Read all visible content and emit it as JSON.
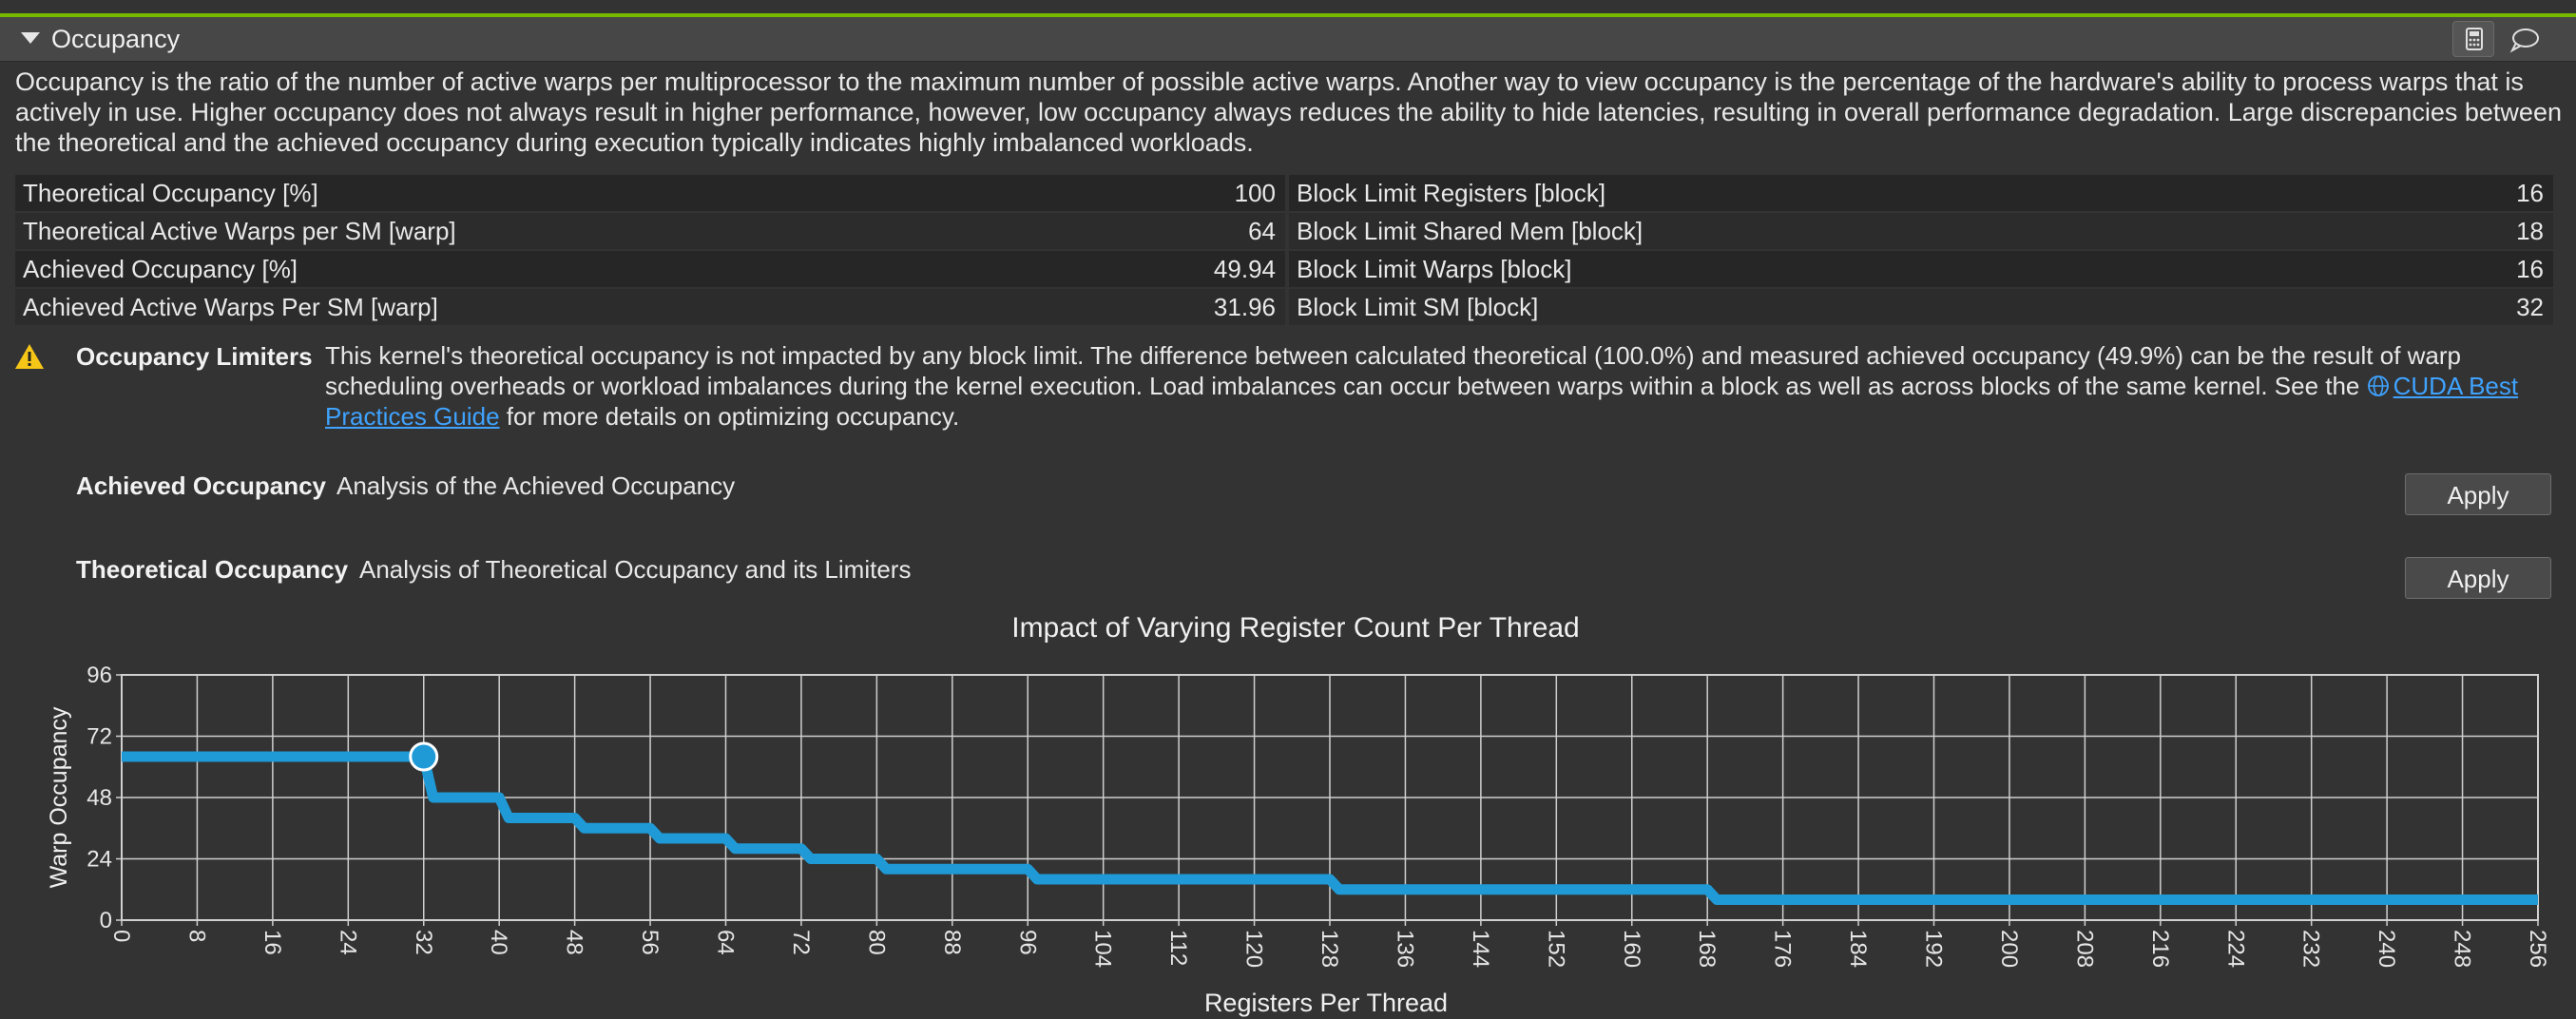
{
  "section": {
    "title": "Occupancy"
  },
  "description": "Occupancy is the ratio of the number of active warps per multiprocessor to the maximum number of possible active warps. Another way to view occupancy is the percentage of the hardware's ability to process warps that is actively in use. Higher occupancy does not always result in higher performance, however, low occupancy always reduces the ability to hide latencies, resulting in overall performance degradation. Large discrepancies between the theoretical and the achieved occupancy during execution typically indicates highly imbalanced workloads.",
  "metrics": [
    {
      "left_label": "Theoretical Occupancy [%]",
      "left_value": "100",
      "right_label": "Block Limit Registers [block]",
      "right_value": "16"
    },
    {
      "left_label": "Theoretical Active Warps per SM [warp]",
      "left_value": "64",
      "right_label": "Block Limit Shared Mem [block]",
      "right_value": "18"
    },
    {
      "left_label": "Achieved Occupancy [%]",
      "left_value": "49.94",
      "right_label": "Block Limit Warps [block]",
      "right_value": "16"
    },
    {
      "left_label": "Achieved Active Warps Per SM [warp]",
      "left_value": "31.96",
      "right_label": "Block Limit SM [block]",
      "right_value": "32"
    }
  ],
  "limiters": {
    "title": "Occupancy Limiters",
    "text": "This kernel's theoretical occupancy is not impacted by any block limit. The difference between calculated theoretical (100.0%) and measured achieved occupancy (49.9%) can be the result of warp scheduling overheads or workload imbalances during the kernel execution. Load imbalances can occur between warps within a block as well as across blocks of the same kernel. See the ",
    "link": "CUDA Best Practices Guide",
    "text_after": " for more details on optimizing occupancy."
  },
  "rules": [
    {
      "title": "Achieved Occupancy",
      "description": "Analysis of the Achieved Occupancy",
      "button": "Apply"
    },
    {
      "title": "Theoretical Occupancy",
      "description": "Analysis of Theoretical Occupancy and its Limiters",
      "button": "Apply"
    }
  ],
  "colors": {
    "accent": "#76b900",
    "series": "#1f9ad6",
    "warning": "#f5c518",
    "link": "#3fa3ff"
  },
  "chart_data": {
    "type": "line",
    "title": "Impact of Varying Register Count Per Thread",
    "xlabel": "Registers Per Thread",
    "ylabel": "Warp Occupancy",
    "xlim": [
      0,
      256
    ],
    "ylim": [
      0,
      96
    ],
    "xticks": [
      0,
      8,
      16,
      24,
      32,
      40,
      48,
      56,
      64,
      72,
      80,
      88,
      96,
      104,
      112,
      120,
      128,
      136,
      144,
      152,
      160,
      168,
      176,
      184,
      192,
      200,
      208,
      216,
      224,
      232,
      240,
      248,
      256
    ],
    "yticks": [
      0,
      24,
      48,
      72,
      96
    ],
    "grid": true,
    "series": [
      {
        "x": [
          0,
          32,
          33,
          40,
          41,
          48,
          49,
          56,
          57,
          64,
          65,
          72,
          73,
          80,
          81,
          96,
          97,
          128,
          129,
          168,
          169,
          256
        ],
        "y": [
          64,
          64,
          48,
          48,
          40,
          40,
          36,
          36,
          32,
          32,
          28,
          28,
          24,
          24,
          20,
          20,
          16,
          16,
          12,
          12,
          8,
          8
        ]
      }
    ],
    "highlight": {
      "x": 32,
      "y": 64
    }
  }
}
